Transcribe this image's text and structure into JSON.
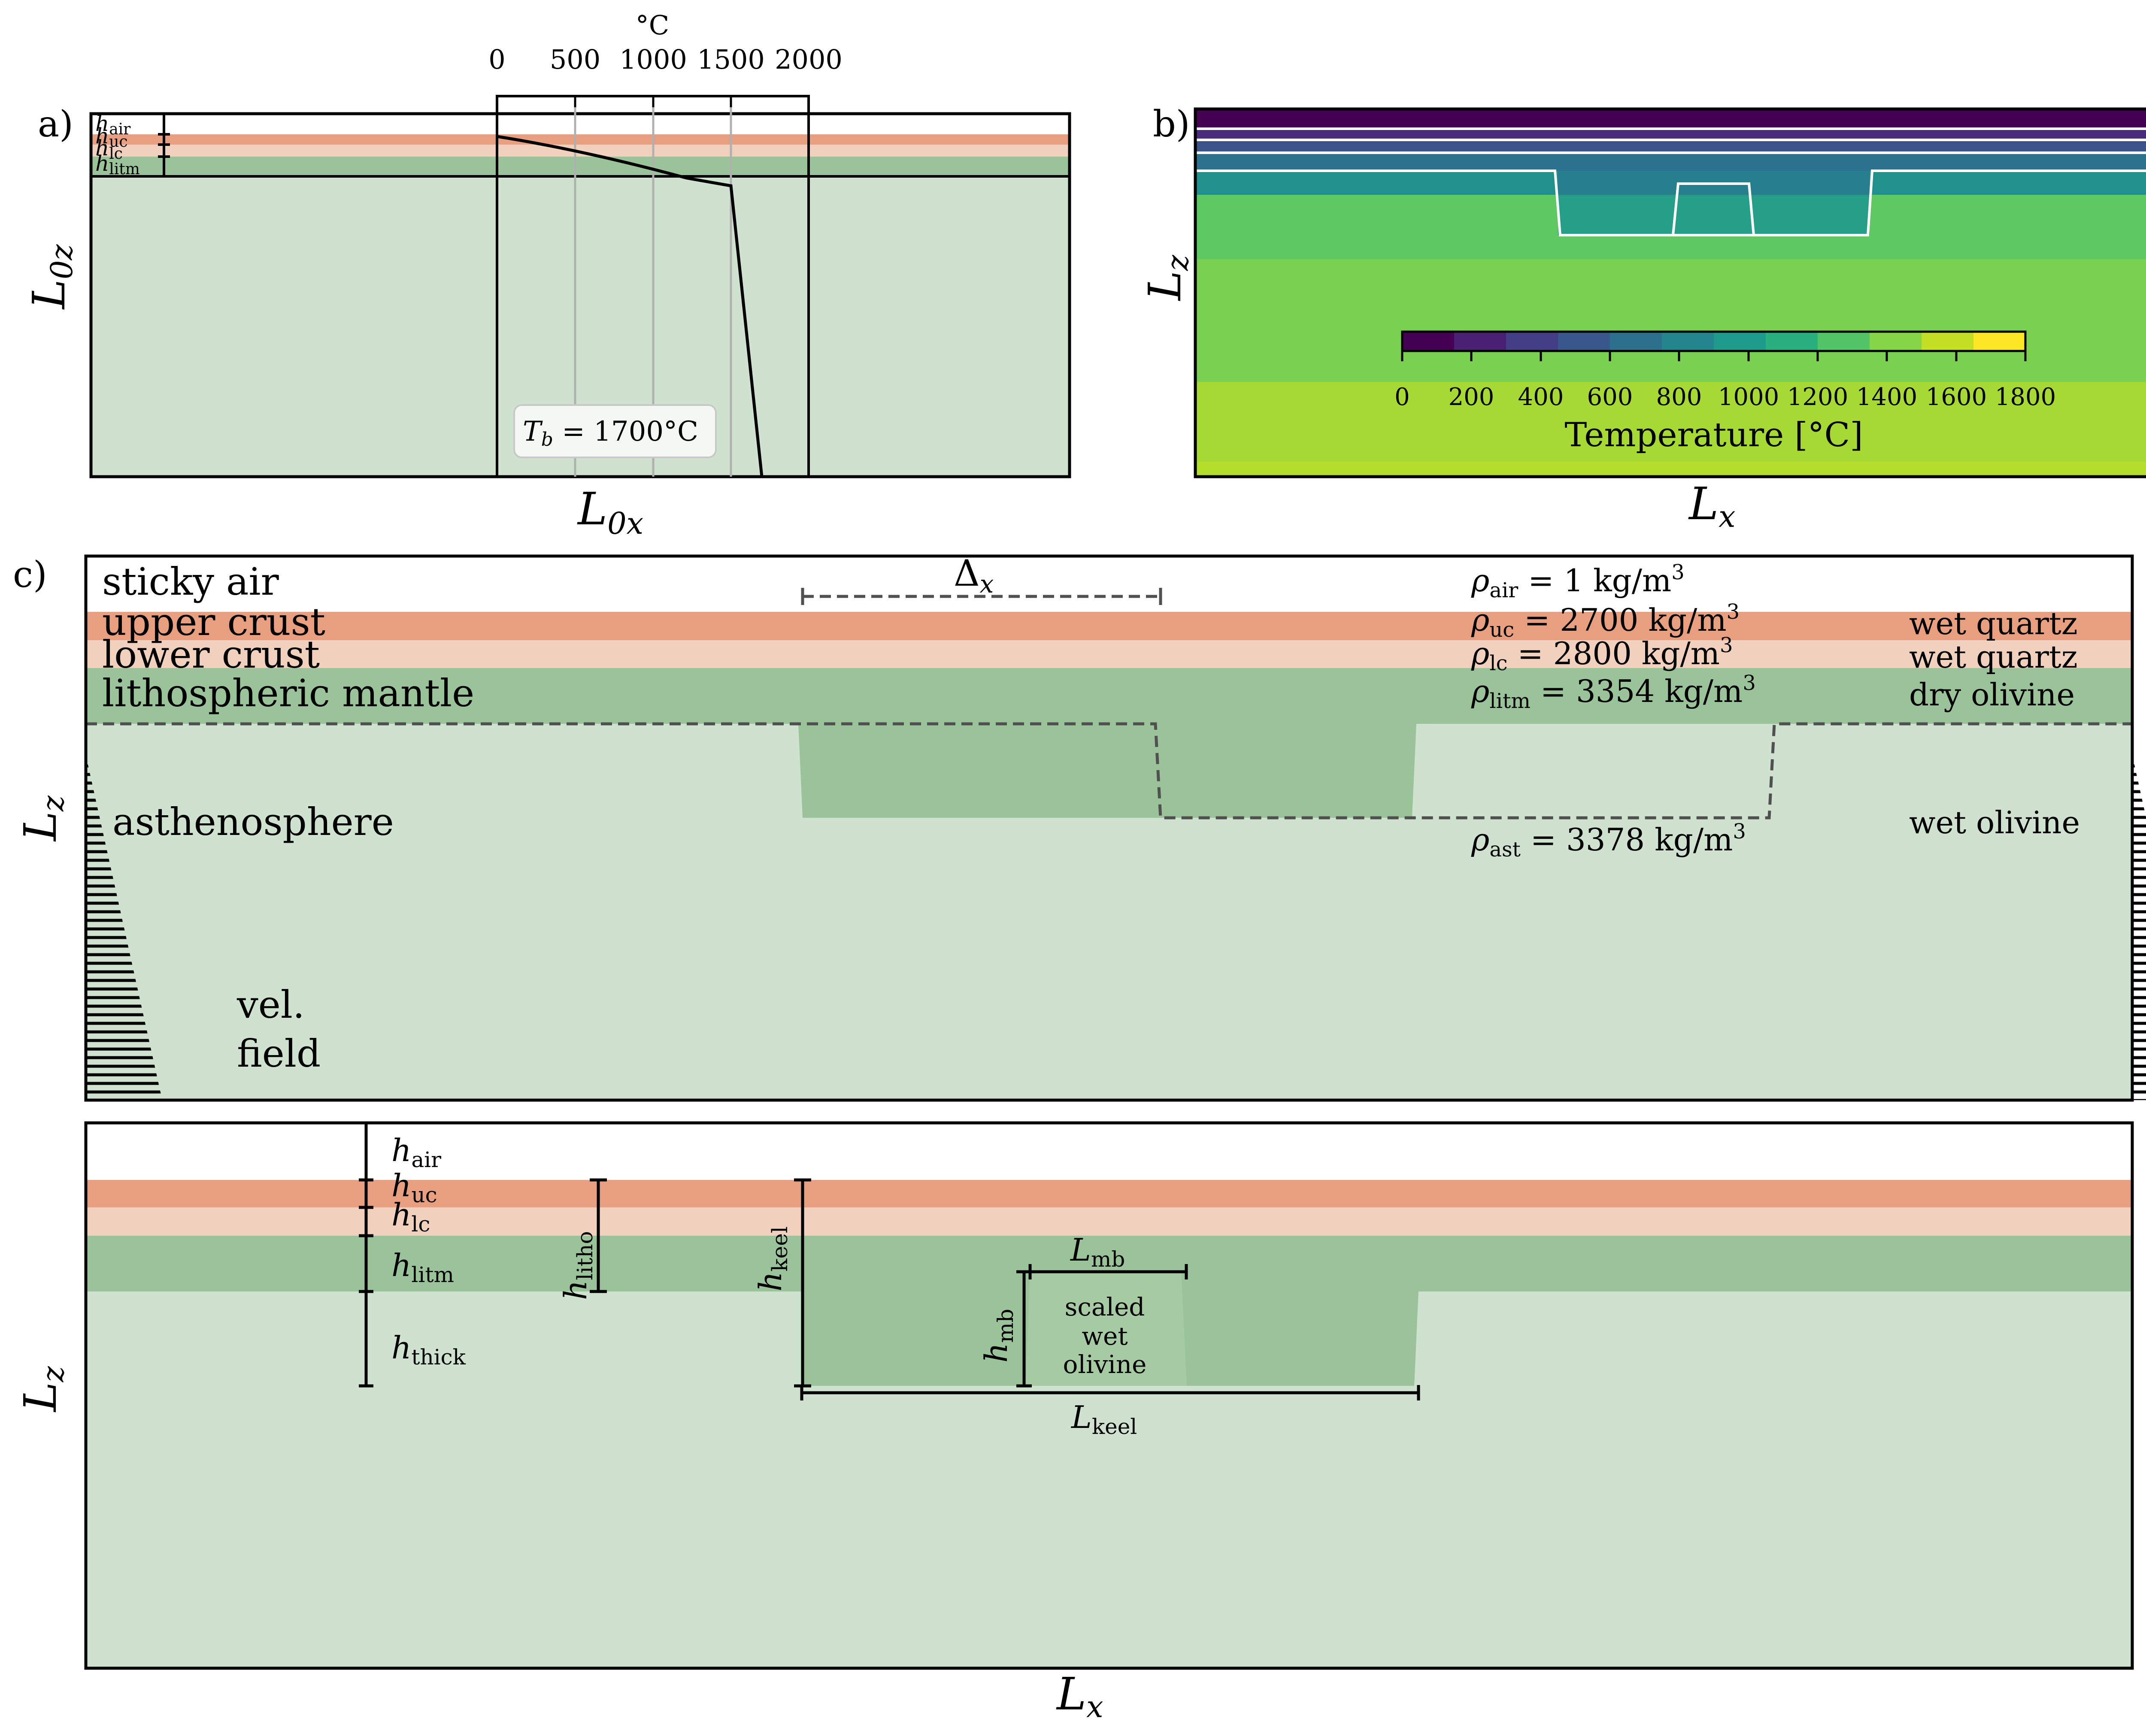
{
  "colors": {
    "air": "#ffffff",
    "upper_crust": "#e89f7f",
    "lower_crust": "#f1d0bd",
    "lith_mantle": "#9bc39a",
    "asthenosphere": "#cfe2cf",
    "mobile_belt": "#a6cba3",
    "frame": "#000000",
    "dashed": "#505050"
  },
  "panel_a": {
    "label": "a)",
    "xlabel_main": "L",
    "xlabel_sub": "0x",
    "ylabel_main": "L",
    "ylabel_sub": "0z",
    "layer_labels": [
      {
        "main": "h",
        "sub": "air"
      },
      {
        "main": "h",
        "sub": "uc"
      },
      {
        "main": "h",
        "sub": "lc"
      },
      {
        "main": "h",
        "sub": "litm"
      }
    ],
    "temp_unit": "°C",
    "temp_ticks": [
      "0",
      "500",
      "1000",
      "1500",
      "2000"
    ],
    "tb_label_main": "T",
    "tb_label_sub": "b",
    "tb_label_value": " = 1700°C"
  },
  "panel_b": {
    "label": "b)",
    "xlabel_main": "L",
    "xlabel_sub": "x",
    "ylabel_main": "L",
    "ylabel_sub": "z",
    "colorbar_ticks": [
      "0",
      "200",
      "400",
      "600",
      "800",
      "1000",
      "1200",
      "1400",
      "1600",
      "1800"
    ],
    "colorbar_label": "Temperature [°C]",
    "colormap": [
      "#440154",
      "#482173",
      "#433e85",
      "#38588c",
      "#2d708e",
      "#25858e",
      "#1e9b8a",
      "#2ab07f",
      "#52c569",
      "#86d549",
      "#c2df23",
      "#fde725"
    ]
  },
  "panel_c": {
    "label": "c)",
    "ylabel_main": "L",
    "ylabel_sub": "z",
    "layers": [
      "sticky air",
      "upper crust",
      "lower crust",
      "lithospheric mantle",
      "asthenosphere"
    ],
    "densities": [
      {
        "rho_sub": "air",
        "value": " = 1 kg/m",
        "sup": "3"
      },
      {
        "rho_sub": "uc",
        "value": " = 2700 kg/m",
        "sup": "3"
      },
      {
        "rho_sub": "lc",
        "value": " = 2800 kg/m",
        "sup": "3"
      },
      {
        "rho_sub": "litm",
        "value": " = 3354 kg/m",
        "sup": "3"
      },
      {
        "rho_sub": "ast",
        "value": " = 3378 kg/m",
        "sup": "3"
      }
    ],
    "rheologies": [
      "wet quartz",
      "wet quartz",
      "dry olivine",
      "wet olivine"
    ],
    "delta_label_main": "Δ",
    "delta_label_sub": "x",
    "vel_field": [
      "vel.",
      "field"
    ]
  },
  "panel_d": {
    "xlabel_main": "L",
    "xlabel_sub": "x",
    "ylabel_main": "L",
    "ylabel_sub": "z",
    "h_labels": [
      {
        "main": "h",
        "sub": "air"
      },
      {
        "main": "h",
        "sub": "uc"
      },
      {
        "main": "h",
        "sub": "lc"
      },
      {
        "main": "h",
        "sub": "litm"
      },
      {
        "main": "h",
        "sub": "thick"
      }
    ],
    "h_litho": {
      "main": "h",
      "sub": "litho"
    },
    "h_keel": {
      "main": "h",
      "sub": "keel"
    },
    "h_mb": {
      "main": "h",
      "sub": "mb"
    },
    "l_mb": {
      "main": "L",
      "sub": "mb"
    },
    "l_keel": {
      "main": "L",
      "sub": "keel"
    },
    "mb_text": [
      "scaled",
      "wet",
      "olivine"
    ]
  }
}
